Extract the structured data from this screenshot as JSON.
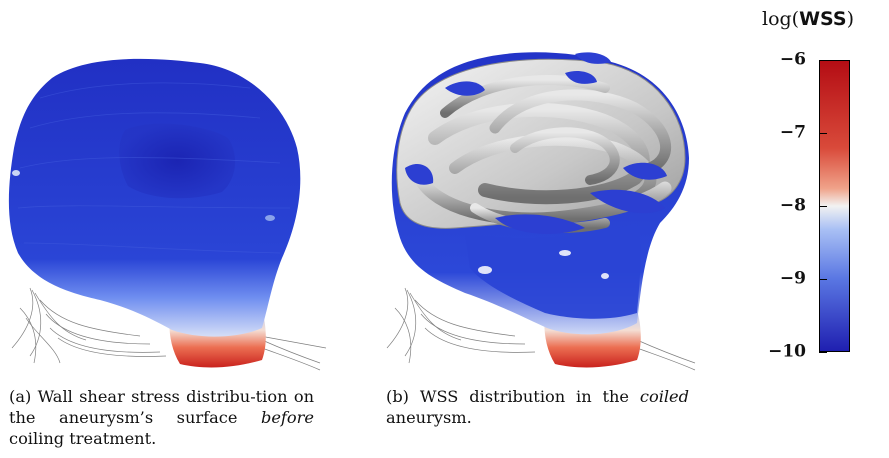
{
  "panels": [
    {
      "id": "a",
      "caption": {
        "prefix": "(a) Wall shear stress distribu-tion on the aneurysm’s surface",
        "emphasis": "before",
        "suffix": " coiling treatment."
      }
    },
    {
      "id": "b",
      "caption": {
        "prefix": "(b) WSS distribution in the",
        "emphasis": "coiled",
        "suffix": " aneurysm."
      }
    }
  ],
  "colorbar": {
    "title_prefix": "log(",
    "title_quantity": "WSS",
    "title_suffix": ")",
    "ticks": [
      "−6",
      "−7",
      "−8",
      "−9",
      "−10"
    ],
    "tick_values": [
      -6,
      -7,
      -8,
      -9,
      -10
    ],
    "range": [
      -10,
      -6
    ],
    "colormap": "coolwarm",
    "colors": {
      "low": "#1f1fb0",
      "mid": "#f2f2f2",
      "high": "#b40d14"
    }
  }
}
